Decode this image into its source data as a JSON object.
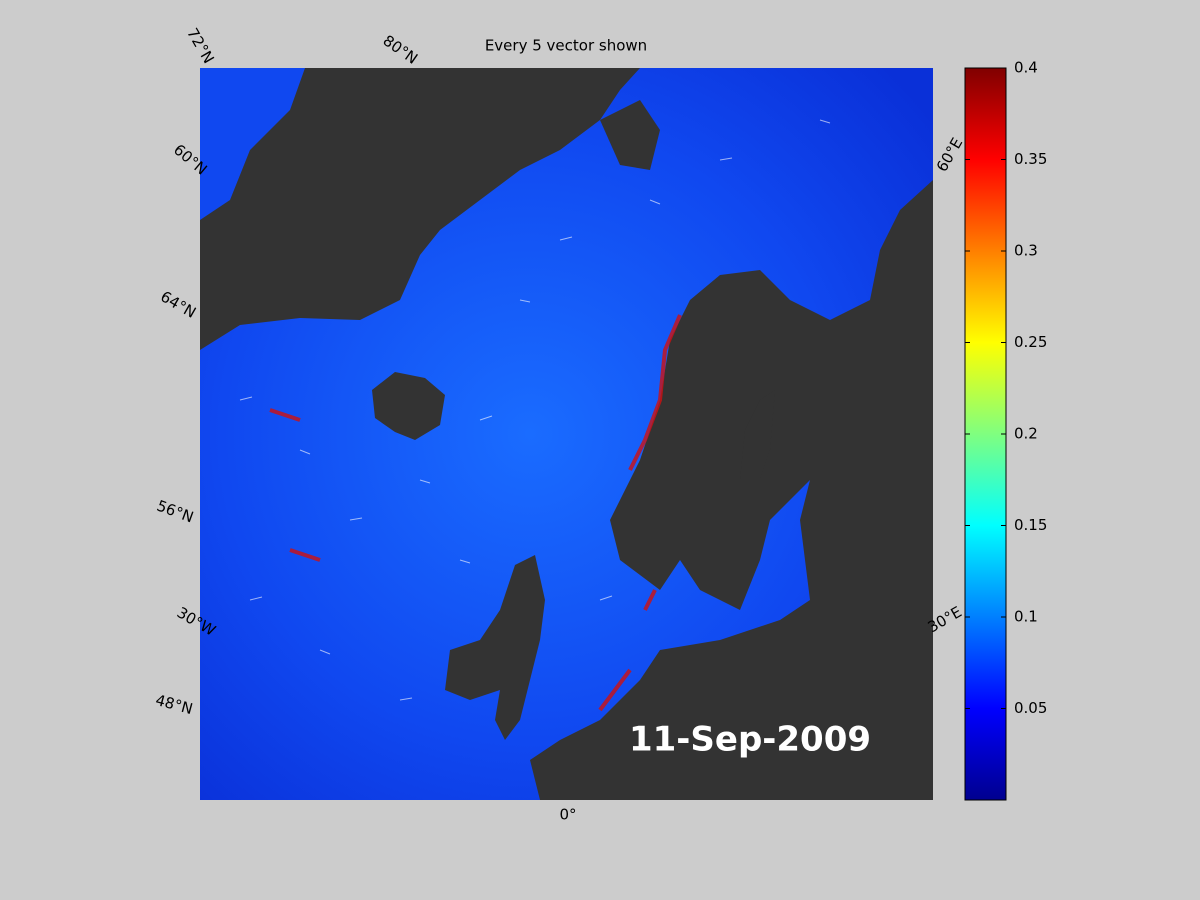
{
  "title": "Every 5 vector shown",
  "date": "11-Sep-2009",
  "graticule_labels": [
    "72°N",
    "80°N",
    "60°N",
    "64°N",
    "56°N",
    "30°W",
    "48°N",
    "0°",
    "30°E",
    "60°E"
  ],
  "colorbar": {
    "ylim": [
      0,
      0.4
    ],
    "yticks": [
      0.05,
      0.1,
      0.15,
      0.2,
      0.25,
      0.3,
      0.35,
      0.4
    ]
  }
}
